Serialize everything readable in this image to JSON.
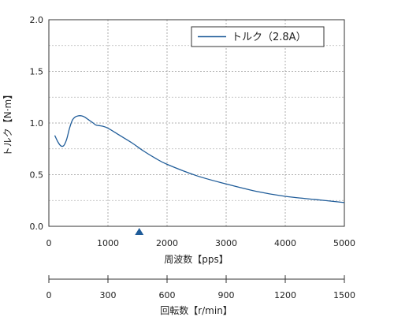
{
  "chart_data": {
    "type": "line",
    "ylabel": "トルク【N·m】",
    "xlabel": "周波数【pps】",
    "xlim": [
      0,
      5000
    ],
    "ylim": [
      0,
      2.0
    ],
    "x_ticks": [
      "0",
      "1000",
      "2000",
      "3000",
      "4000",
      "5000"
    ],
    "y_ticks": [
      "0.0",
      "0.5",
      "1.0",
      "1.5",
      "2.0"
    ],
    "grid": true,
    "legend_position": "top-right",
    "series": [
      {
        "name": "トルク（2.8A）",
        "color": "#1f5c99",
        "x": [
          100,
          150,
          200,
          250,
          300,
          350,
          400,
          450,
          500,
          550,
          600,
          650,
          700,
          750,
          800,
          900,
          1000,
          1200,
          1400,
          1600,
          1800,
          2000,
          2500,
          3000,
          3500,
          4000,
          4500,
          5000
        ],
        "y": [
          0.88,
          0.82,
          0.78,
          0.78,
          0.84,
          0.95,
          1.03,
          1.06,
          1.07,
          1.07,
          1.06,
          1.04,
          1.02,
          1.0,
          0.98,
          0.97,
          0.95,
          0.88,
          0.81,
          0.73,
          0.66,
          0.6,
          0.49,
          0.41,
          0.34,
          0.29,
          0.26,
          0.23
        ]
      }
    ],
    "marker": {
      "x": 1530,
      "shape": "triangle-up",
      "color": "#1f5c99"
    },
    "secondary_axis": {
      "xlabel": "回転数【r/min】",
      "xlim": [
        0,
        1500
      ],
      "x_ticks": [
        "0",
        "300",
        "600",
        "900",
        "1200",
        "1500"
      ]
    }
  }
}
